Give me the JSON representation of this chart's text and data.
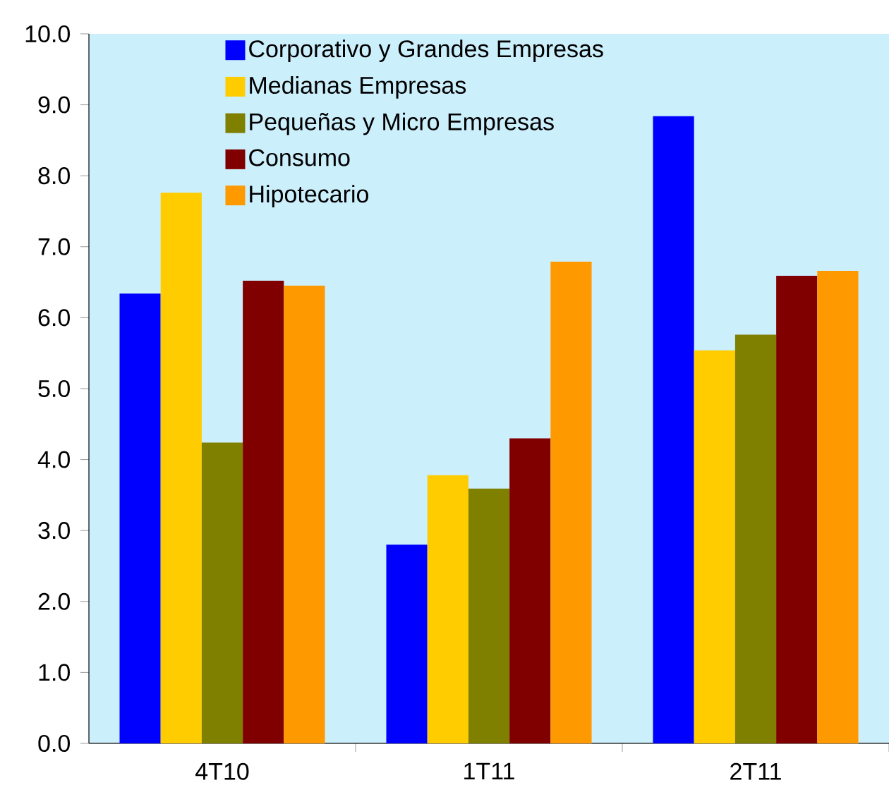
{
  "chart_data": {
    "type": "bar",
    "categories": [
      "4T10",
      "1T11",
      "2T11"
    ],
    "series": [
      {
        "name": "Corporativo y Grandes Empresas",
        "color": "#0000ff",
        "values": [
          6.34,
          2.8,
          8.84
        ]
      },
      {
        "name": "Medianas Empresas",
        "color": "#ffcc00",
        "values": [
          7.76,
          3.78,
          5.54
        ]
      },
      {
        "name": "Pequeñas y Micro Empresas",
        "color": "#808000",
        "values": [
          4.24,
          3.59,
          5.76
        ]
      },
      {
        "name": "Consumo",
        "color": "#800000",
        "values": [
          6.52,
          4.3,
          6.59
        ]
      },
      {
        "name": "Hipotecario",
        "color": "#ff9900",
        "values": [
          6.45,
          6.79,
          6.66
        ]
      }
    ],
    "ylim": [
      0,
      10
    ],
    "yticks": [
      {
        "value": 0,
        "label": "0.0"
      },
      {
        "value": 1,
        "label": "1.0"
      },
      {
        "value": 2,
        "label": "2.0"
      },
      {
        "value": 3,
        "label": "3.0"
      },
      {
        "value": 4,
        "label": "4.0"
      },
      {
        "value": 5,
        "label": "5.0"
      },
      {
        "value": 6,
        "label": "6.0"
      },
      {
        "value": 7,
        "label": "7.0"
      },
      {
        "value": 8,
        "label": "8.0"
      },
      {
        "value": 9,
        "label": "9.0"
      },
      {
        "value": 10,
        "label": "10.0"
      }
    ],
    "grid": false,
    "legend": "top"
  }
}
